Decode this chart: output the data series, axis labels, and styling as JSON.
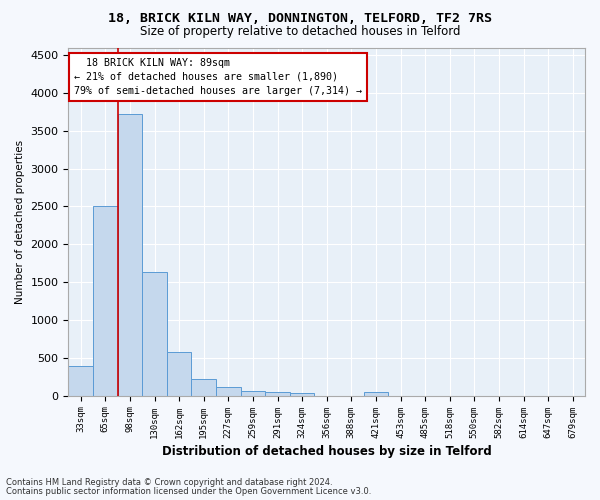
{
  "title_line1": "18, BRICK KILN WAY, DONNINGTON, TELFORD, TF2 7RS",
  "title_line2": "Size of property relative to detached houses in Telford",
  "xlabel": "Distribution of detached houses by size in Telford",
  "ylabel": "Number of detached properties",
  "footnote1": "Contains HM Land Registry data © Crown copyright and database right 2024.",
  "footnote2": "Contains public sector information licensed under the Open Government Licence v3.0.",
  "bar_labels": [
    "33sqm",
    "65sqm",
    "98sqm",
    "130sqm",
    "162sqm",
    "195sqm",
    "227sqm",
    "259sqm",
    "291sqm",
    "324sqm",
    "356sqm",
    "388sqm",
    "421sqm",
    "453sqm",
    "485sqm",
    "518sqm",
    "550sqm",
    "582sqm",
    "614sqm",
    "647sqm",
    "679sqm"
  ],
  "bar_values": [
    390,
    2500,
    3720,
    1630,
    580,
    225,
    110,
    60,
    45,
    35,
    0,
    0,
    50,
    0,
    0,
    0,
    0,
    0,
    0,
    0,
    0
  ],
  "bar_color": "#c5d8ed",
  "bar_edge_color": "#5b9bd5",
  "property_label": "18 BRICK KILN WAY: 89sqm",
  "pct_smaller": 21,
  "n_smaller": 1890,
  "pct_larger_semi": 79,
  "n_larger_semi": 7314,
  "vline_x": 1.5,
  "ylim": [
    0,
    4600
  ],
  "yticks": [
    0,
    500,
    1000,
    1500,
    2000,
    2500,
    3000,
    3500,
    4000,
    4500
  ],
  "annotation_box_color": "#ffffff",
  "annotation_box_edge": "#cc0000",
  "vline_color": "#cc0000",
  "bg_color": "#e8f0f8",
  "fig_bg_color": "#f5f8fd",
  "grid_color": "#ffffff"
}
